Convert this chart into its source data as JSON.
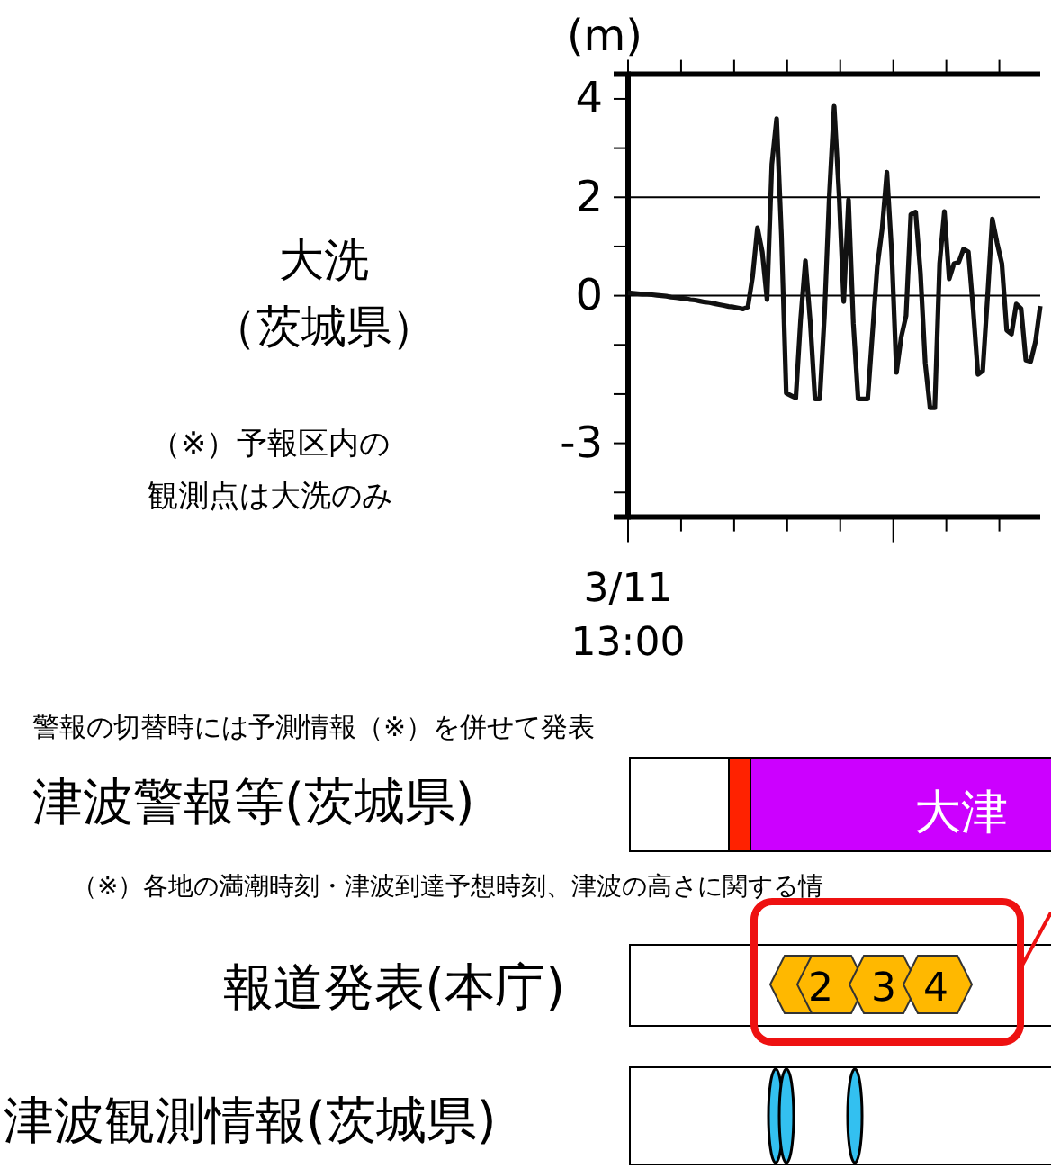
{
  "chart_data": {
    "type": "line",
    "title": "大洗",
    "subtitle": "（茨城県）",
    "ylabel": "(m)",
    "categories": [
      null,
      null,
      null,
      null,
      null,
      null,
      null,
      null,
      null,
      null,
      null,
      null,
      null,
      null,
      null,
      null,
      null,
      null,
      null,
      null,
      null,
      null,
      null,
      null,
      null,
      null,
      null,
      null,
      null,
      null,
      null,
      null,
      null,
      null,
      null,
      null,
      null,
      null,
      null,
      null,
      null,
      null,
      null,
      null,
      null,
      null,
      null,
      null,
      null,
      null,
      null,
      null,
      null,
      null,
      null,
      null,
      null,
      null,
      null,
      null,
      null,
      null,
      null,
      null,
      null,
      null,
      null,
      null,
      null,
      null,
      null,
      null,
      null,
      null,
      null,
      null,
      null,
      null,
      null,
      null,
      null,
      null,
      null,
      null,
      null,
      null,
      null
    ],
    "series": [
      {
        "color": "#111111",
        "values": [
          0.06,
          0.05,
          0.04,
          0.03,
          0.03,
          0.02,
          0.01,
          0,
          -0.01,
          -0.03,
          -0.04,
          -0.05,
          -0.06,
          -0.08,
          -0.09,
          -0.11,
          -0.13,
          -0.14,
          -0.16,
          -0.18,
          -0.2,
          -0.22,
          -0.23,
          -0.25,
          -0.27,
          -0.23,
          0.4,
          1.38,
          0.89,
          -0.08,
          2.67,
          3.6,
          1.23,
          -1.98,
          -2.03,
          -2.08,
          -0.49,
          0.71,
          -0.51,
          -2.1,
          -2.1,
          -0.36,
          2.05,
          3.85,
          2.1,
          -0.12,
          1.95,
          -0.56,
          -2.1,
          -2.1,
          -2.1,
          -0.75,
          0.6,
          1.35,
          2.51,
          0.89,
          -1.56,
          -0.84,
          -0.41,
          1.65,
          1.7,
          0.47,
          -1.37,
          -2.28,
          -2.28,
          0.65,
          1.71,
          0.34,
          0.65,
          0.68,
          0.95,
          0.89,
          -0.27,
          -1.6,
          -1.53,
          -0.03,
          1.56,
          1.07,
          0.65,
          -0.7,
          -0.78,
          -0.17,
          -0.26,
          -1.31,
          -1.34,
          -0.94,
          -0.21
        ]
      }
    ],
    "ylim": [
      -4.5,
      4.5
    ],
    "yticks": [
      4,
      {
        "value": 3,
        "label": null
      },
      2,
      {
        "value": 1,
        "label": null
      },
      0,
      {
        "value": -1,
        "label": null
      },
      {
        "value": -2,
        "label": null
      },
      -3,
      {
        "value": -4,
        "label": null
      }
    ],
    "ref_lines": [
      {
        "axis": "y",
        "value": 2
      },
      {
        "axis": "y",
        "value": 0
      }
    ],
    "marker": "none",
    "line_style": "solid",
    "annotations": [
      "（※）予報区内の観測点は大洗のみ",
      "警報の切替時には予測情報（※）を併せて発表",
      "津波警報等(茨城県)",
      "大津",
      "（※）各地の満潮時刻・津波到達予想時刻、津波の高さに関する情",
      "報道発表(本庁)",
      "2",
      "3",
      "4",
      "津波観測情報(茨城県)",
      "3/11 13:00"
    ]
  }
}
